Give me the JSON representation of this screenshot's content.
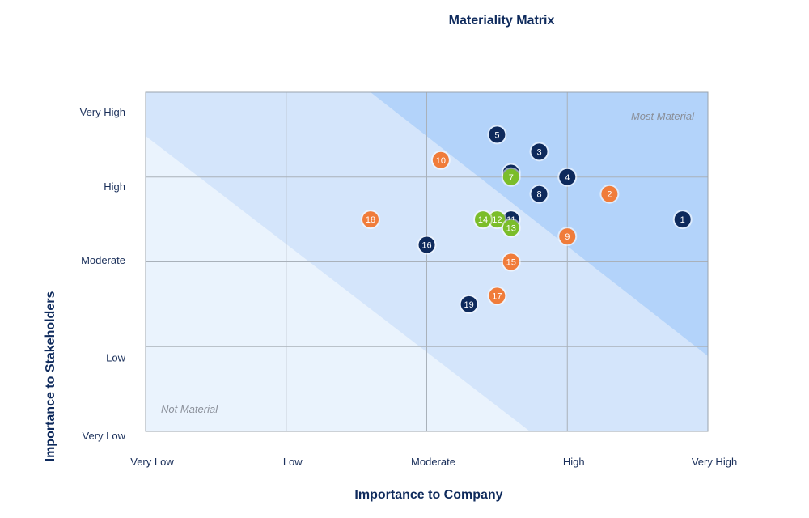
{
  "chart_data": {
    "type": "scatter",
    "title": "Materiality Matrix",
    "xlabel": "Importance to Company",
    "ylabel": "Importance to Stakeholders",
    "xlim": [
      0,
      4
    ],
    "ylim": [
      0,
      4
    ],
    "x_tick_labels": [
      "Very Low",
      "Low",
      "Moderate",
      "High",
      "Very High"
    ],
    "y_tick_labels": [
      {
        "label": "Very Low",
        "y": 0
      },
      {
        "label": "Low",
        "y": 0.92
      },
      {
        "label": "Moderate",
        "y": 2.07
      },
      {
        "label": "High",
        "y": 2.94
      },
      {
        "label": "Very High",
        "y": 3.82
      }
    ],
    "grid": true,
    "zone_labels": {
      "high": "Most Material",
      "low": "Not Material"
    },
    "colors": {
      "navy": "#0e2a5c",
      "orange": "#f07c3a",
      "green": "#7bbd2a"
    },
    "points": [
      {
        "label": "1",
        "x": 3.82,
        "y": 2.5,
        "color": "navy"
      },
      {
        "label": "2",
        "x": 3.3,
        "y": 2.8,
        "color": "orange"
      },
      {
        "label": "3",
        "x": 2.8,
        "y": 3.3,
        "color": "navy"
      },
      {
        "label": "4",
        "x": 3.0,
        "y": 3.0,
        "color": "navy"
      },
      {
        "label": "5",
        "x": 2.5,
        "y": 3.5,
        "color": "navy"
      },
      {
        "label": "6",
        "x": 2.6,
        "y": 3.05,
        "color": "navy"
      },
      {
        "label": "7",
        "x": 2.6,
        "y": 3.0,
        "color": "green"
      },
      {
        "label": "8",
        "x": 2.8,
        "y": 2.8,
        "color": "navy"
      },
      {
        "label": "9",
        "x": 3.0,
        "y": 2.3,
        "color": "orange"
      },
      {
        "label": "10",
        "x": 2.1,
        "y": 3.2,
        "color": "orange"
      },
      {
        "label": "11",
        "x": 2.6,
        "y": 2.5,
        "color": "navy"
      },
      {
        "label": "12",
        "x": 2.5,
        "y": 2.5,
        "color": "green"
      },
      {
        "label": "13",
        "x": 2.6,
        "y": 2.4,
        "color": "green"
      },
      {
        "label": "14",
        "x": 2.4,
        "y": 2.5,
        "color": "green"
      },
      {
        "label": "15",
        "x": 2.6,
        "y": 2.0,
        "color": "orange"
      },
      {
        "label": "16",
        "x": 2.0,
        "y": 2.2,
        "color": "navy"
      },
      {
        "label": "17",
        "x": 2.5,
        "y": 1.6,
        "color": "orange"
      },
      {
        "label": "18",
        "x": 1.6,
        "y": 2.5,
        "color": "orange"
      },
      {
        "label": "19",
        "x": 2.3,
        "y": 1.5,
        "color": "navy"
      }
    ]
  }
}
